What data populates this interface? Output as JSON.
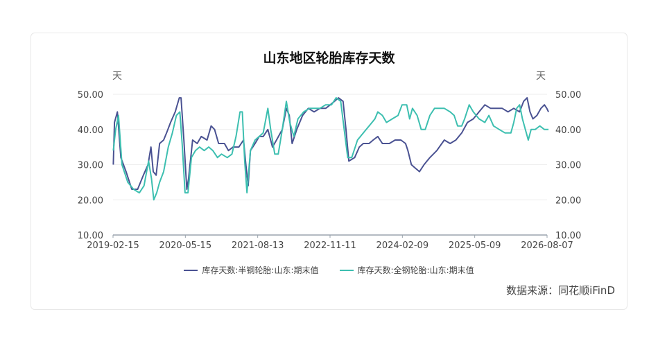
{
  "title": "山东地区轮胎库存天数",
  "left_unit": "天",
  "right_unit": "天",
  "source": "数据来源：同花顺iFinD",
  "colors": {
    "semi": "#4a5292",
    "full": "#3dbfb0",
    "axis": "#9aa3ad",
    "grid": "#eeeeee",
    "tick": "#444444"
  },
  "chart_data": {
    "type": "line",
    "y_ticks": [
      "10.00",
      "20.00",
      "30.00",
      "40.00",
      "50.00"
    ],
    "ylim": [
      10,
      50
    ],
    "x_ticks": [
      "2019-02-15",
      "2020-05-15",
      "2021-08-13",
      "2022-11-11",
      "2024-02-09",
      "2025-05-09",
      "2026-08-07"
    ],
    "x_tick_values": [
      2019.125,
      2020.375,
      2021.625,
      2022.875,
      2024.125,
      2025.375,
      2026.625
    ],
    "xlim": [
      2019.125,
      2026.625
    ],
    "grid": true,
    "legend_position": "bottom",
    "series": [
      {
        "name": "库存天数:半钢轮胎:山东:期末值",
        "color": "#4a5292",
        "points": [
          [
            2019.13,
            30
          ],
          [
            2019.15,
            42
          ],
          [
            2019.2,
            45
          ],
          [
            2019.26,
            32
          ],
          [
            2019.35,
            28
          ],
          [
            2019.45,
            23
          ],
          [
            2019.55,
            23
          ],
          [
            2019.65,
            27
          ],
          [
            2019.73,
            30
          ],
          [
            2019.78,
            35
          ],
          [
            2019.82,
            28
          ],
          [
            2019.87,
            27
          ],
          [
            2019.93,
            36
          ],
          [
            2020.0,
            37
          ],
          [
            2020.05,
            39
          ],
          [
            2020.12,
            42
          ],
          [
            2020.2,
            45
          ],
          [
            2020.27,
            49
          ],
          [
            2020.3,
            49
          ],
          [
            2020.35,
            37
          ],
          [
            2020.4,
            23
          ],
          [
            2020.43,
            26
          ],
          [
            2020.5,
            37
          ],
          [
            2020.58,
            36
          ],
          [
            2020.65,
            38
          ],
          [
            2020.75,
            37
          ],
          [
            2020.82,
            41
          ],
          [
            2020.88,
            40
          ],
          [
            2020.95,
            36
          ],
          [
            2021.05,
            36
          ],
          [
            2021.12,
            34
          ],
          [
            2021.2,
            35
          ],
          [
            2021.3,
            35
          ],
          [
            2021.38,
            37
          ],
          [
            2021.42,
            30
          ],
          [
            2021.46,
            24
          ],
          [
            2021.5,
            34
          ],
          [
            2021.58,
            36
          ],
          [
            2021.65,
            38
          ],
          [
            2021.72,
            38
          ],
          [
            2021.8,
            40
          ],
          [
            2021.88,
            35
          ],
          [
            2021.95,
            37
          ],
          [
            2022.05,
            40
          ],
          [
            2022.12,
            46
          ],
          [
            2022.17,
            44
          ],
          [
            2022.22,
            36
          ],
          [
            2022.3,
            40
          ],
          [
            2022.4,
            44
          ],
          [
            2022.5,
            46
          ],
          [
            2022.6,
            45
          ],
          [
            2022.7,
            46
          ],
          [
            2022.8,
            46
          ],
          [
            2022.88,
            47
          ],
          [
            2022.95,
            48
          ],
          [
            2023.02,
            49
          ],
          [
            2023.1,
            48
          ],
          [
            2023.15,
            40
          ],
          [
            2023.2,
            31
          ],
          [
            2023.3,
            32
          ],
          [
            2023.38,
            35
          ],
          [
            2023.45,
            36
          ],
          [
            2023.55,
            36
          ],
          [
            2023.62,
            37
          ],
          [
            2023.7,
            38
          ],
          [
            2023.78,
            36
          ],
          [
            2023.9,
            36
          ],
          [
            2024.0,
            37
          ],
          [
            2024.1,
            37
          ],
          [
            2024.18,
            36
          ],
          [
            2024.22,
            34
          ],
          [
            2024.28,
            30
          ],
          [
            2024.35,
            29
          ],
          [
            2024.42,
            28
          ],
          [
            2024.5,
            30
          ],
          [
            2024.6,
            32
          ],
          [
            2024.72,
            34
          ],
          [
            2024.85,
            37
          ],
          [
            2024.95,
            36
          ],
          [
            2025.05,
            37
          ],
          [
            2025.15,
            39
          ],
          [
            2025.25,
            42
          ],
          [
            2025.35,
            43
          ],
          [
            2025.45,
            45
          ],
          [
            2025.55,
            47
          ],
          [
            2025.65,
            46
          ],
          [
            2025.75,
            46
          ],
          [
            2025.85,
            46
          ],
          [
            2025.95,
            45
          ],
          [
            2026.05,
            46
          ],
          [
            2026.15,
            45
          ],
          [
            2026.22,
            48
          ],
          [
            2026.28,
            49
          ],
          [
            2026.33,
            45
          ],
          [
            2026.38,
            43
          ],
          [
            2026.45,
            44
          ],
          [
            2026.52,
            46
          ],
          [
            2026.58,
            47
          ],
          [
            2026.62,
            46
          ],
          [
            2026.65,
            45
          ]
        ]
      },
      {
        "name": "库存天数:全钢轮胎:山东:期末值",
        "color": "#3dbfb0",
        "points": [
          [
            2019.13,
            34
          ],
          [
            2019.17,
            40
          ],
          [
            2019.22,
            44
          ],
          [
            2019.28,
            30
          ],
          [
            2019.38,
            25
          ],
          [
            2019.48,
            23
          ],
          [
            2019.58,
            22
          ],
          [
            2019.66,
            24
          ],
          [
            2019.74,
            31
          ],
          [
            2019.79,
            26
          ],
          [
            2019.83,
            20
          ],
          [
            2019.88,
            22
          ],
          [
            2019.93,
            25
          ],
          [
            2020.0,
            28
          ],
          [
            2020.08,
            35
          ],
          [
            2020.15,
            39
          ],
          [
            2020.22,
            44
          ],
          [
            2020.28,
            45
          ],
          [
            2020.32,
            36
          ],
          [
            2020.37,
            22
          ],
          [
            2020.42,
            22
          ],
          [
            2020.48,
            32
          ],
          [
            2020.55,
            34
          ],
          [
            2020.62,
            35
          ],
          [
            2020.7,
            34
          ],
          [
            2020.78,
            35
          ],
          [
            2020.85,
            34
          ],
          [
            2020.93,
            32
          ],
          [
            2021.0,
            33
          ],
          [
            2021.1,
            32
          ],
          [
            2021.18,
            33
          ],
          [
            2021.25,
            38
          ],
          [
            2021.32,
            45
          ],
          [
            2021.36,
            45
          ],
          [
            2021.4,
            31
          ],
          [
            2021.44,
            22
          ],
          [
            2021.5,
            34
          ],
          [
            2021.58,
            37
          ],
          [
            2021.65,
            38
          ],
          [
            2021.72,
            39
          ],
          [
            2021.8,
            46
          ],
          [
            2021.85,
            40
          ],
          [
            2021.92,
            33
          ],
          [
            2021.98,
            33
          ],
          [
            2022.05,
            40
          ],
          [
            2022.12,
            48
          ],
          [
            2022.18,
            42
          ],
          [
            2022.25,
            38
          ],
          [
            2022.32,
            43
          ],
          [
            2022.42,
            45
          ],
          [
            2022.52,
            46
          ],
          [
            2022.6,
            46
          ],
          [
            2022.7,
            46
          ],
          [
            2022.8,
            47
          ],
          [
            2022.9,
            47
          ],
          [
            2022.98,
            49
          ],
          [
            2023.06,
            48
          ],
          [
            2023.12,
            40
          ],
          [
            2023.18,
            32
          ],
          [
            2023.25,
            32
          ],
          [
            2023.35,
            37
          ],
          [
            2023.45,
            39
          ],
          [
            2023.55,
            41
          ],
          [
            2023.65,
            43
          ],
          [
            2023.7,
            45
          ],
          [
            2023.78,
            44
          ],
          [
            2023.85,
            42
          ],
          [
            2023.95,
            43
          ],
          [
            2024.05,
            44
          ],
          [
            2024.12,
            47
          ],
          [
            2024.2,
            47
          ],
          [
            2024.25,
            43
          ],
          [
            2024.3,
            46
          ],
          [
            2024.38,
            44
          ],
          [
            2024.45,
            40
          ],
          [
            2024.52,
            40
          ],
          [
            2024.6,
            44
          ],
          [
            2024.68,
            46
          ],
          [
            2024.75,
            46
          ],
          [
            2024.85,
            46
          ],
          [
            2024.95,
            45
          ],
          [
            2025.02,
            44
          ],
          [
            2025.08,
            41
          ],
          [
            2025.15,
            41
          ],
          [
            2025.2,
            43
          ],
          [
            2025.28,
            47
          ],
          [
            2025.35,
            45
          ],
          [
            2025.45,
            43
          ],
          [
            2025.55,
            42
          ],
          [
            2025.62,
            44
          ],
          [
            2025.7,
            41
          ],
          [
            2025.8,
            40
          ],
          [
            2025.9,
            39
          ],
          [
            2026.0,
            39
          ],
          [
            2026.05,
            42
          ],
          [
            2026.1,
            46
          ],
          [
            2026.15,
            47
          ],
          [
            2026.2,
            43
          ],
          [
            2026.25,
            40
          ],
          [
            2026.3,
            37
          ],
          [
            2026.35,
            40
          ],
          [
            2026.42,
            40
          ],
          [
            2026.5,
            41
          ],
          [
            2026.58,
            40
          ],
          [
            2026.62,
            40
          ],
          [
            2026.65,
            40
          ]
        ]
      }
    ]
  }
}
